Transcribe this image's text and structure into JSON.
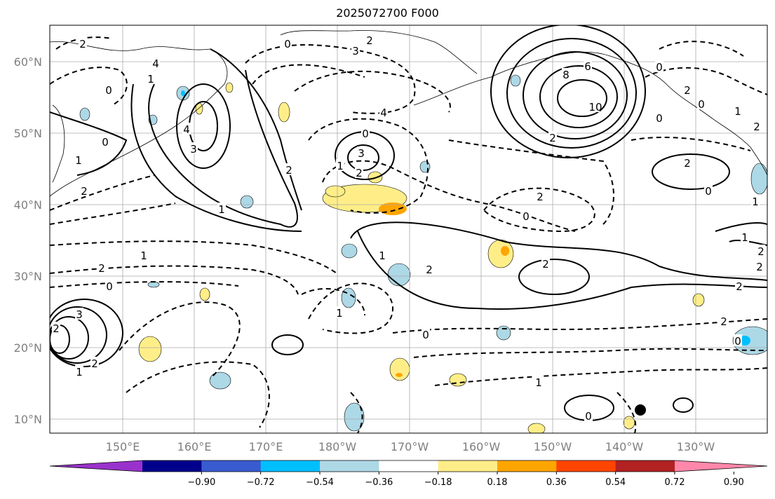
{
  "title": "2025072700 F000",
  "lat_labels": [
    "60°N",
    "50°N",
    "40°N",
    "30°N",
    "20°N",
    "10°N"
  ],
  "lon_labels": [
    "150°E",
    "160°E",
    "170°E",
    "180°W",
    "170°W",
    "160°W",
    "150°W",
    "140°W",
    "130°W"
  ],
  "colorbar": {
    "colors": [
      "#9932cc",
      "#00008b",
      "#3a5bcf",
      "#00bfff",
      "#add8e6",
      "#ffffff",
      "#ffee88",
      "#ffa500",
      "#ff4500",
      "#b22222",
      "#ff88aa"
    ],
    "tick_labels": [
      "−0.90",
      "−0.72",
      "−0.54",
      "−0.36",
      "−0.18",
      "0.18",
      "0.36",
      "0.54",
      "0.72",
      "0.90"
    ]
  },
  "contour_labels": [
    "2",
    "3",
    "2",
    "0",
    "4",
    "4",
    "3",
    "1",
    "0",
    "1",
    "2",
    "0",
    "4",
    "3",
    "0",
    "2",
    "1",
    "2",
    "0",
    "1",
    "2",
    "2",
    "0",
    "3",
    "1",
    "2",
    "2",
    "8",
    "6",
    "10",
    "2",
    "0",
    "2",
    "1",
    "2",
    "1",
    "2",
    "2",
    "1",
    "2",
    "1",
    "0",
    "2",
    "0",
    "1",
    "3",
    "0",
    "0",
    "2",
    "1",
    "2",
    "2",
    "1",
    "0",
    "0"
  ]
}
